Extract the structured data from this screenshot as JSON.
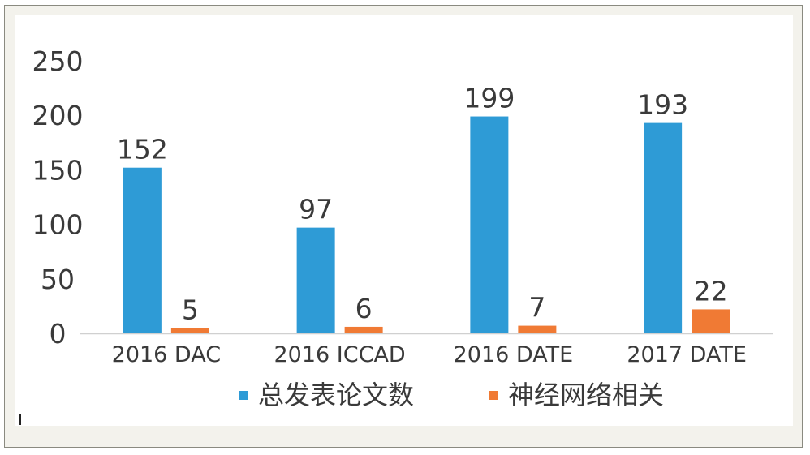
{
  "chart_data": {
    "type": "bar",
    "title": "",
    "xlabel": "",
    "ylabel": "",
    "categories": [
      "2016 DAC",
      "2016 ICCAD",
      "2016 DATE",
      "2017 DATE"
    ],
    "series": [
      {
        "name": "总发表论文数",
        "values": [
          152,
          97,
          199,
          193
        ],
        "color": "#2e9bd6"
      },
      {
        "name": "神经网络相关",
        "values": [
          5,
          6,
          7,
          22
        ],
        "color": "#f07a34"
      }
    ],
    "ylim": [
      0,
      250
    ],
    "yticks": [
      0,
      50,
      100,
      150,
      200,
      250
    ],
    "grid": false,
    "legend": "bottom",
    "data_labels": true
  }
}
